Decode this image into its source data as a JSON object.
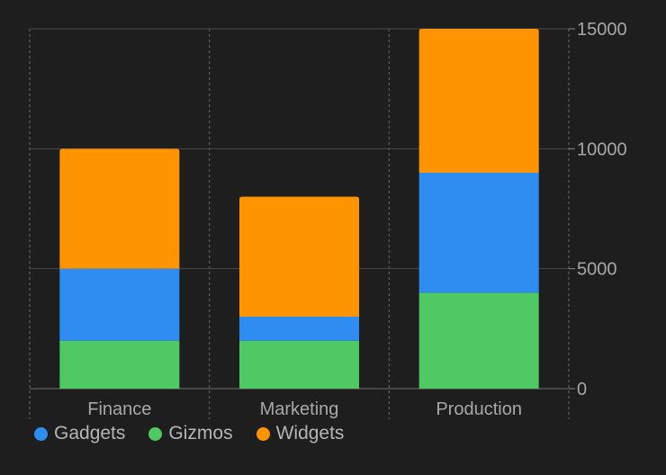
{
  "chart_data": {
    "type": "bar",
    "stacked": true,
    "categories": [
      "Finance",
      "Marketing",
      "Production"
    ],
    "series": [
      {
        "name": "Gizmos",
        "values": [
          2000,
          2000,
          4000
        ],
        "color": "#4ec964"
      },
      {
        "name": "Gadgets",
        "values": [
          3000,
          1000,
          5000
        ],
        "color": "#2f8cf0"
      },
      {
        "name": "Widgets",
        "values": [
          5000,
          5000,
          6000
        ],
        "color": "#fe9500"
      }
    ],
    "ylim": [
      0,
      15000
    ],
    "yticks": [
      "0",
      "5000",
      "10000",
      "15000"
    ],
    "grid": true,
    "y_axis_side": "right",
    "legend_position": "bottom-left",
    "legend": [
      {
        "name": "Gadgets",
        "color": "#2f8cf0"
      },
      {
        "name": "Gizmos",
        "color": "#4ec964"
      },
      {
        "name": "Widgets",
        "color": "#fe9500"
      }
    ],
    "title": "",
    "xlabel": "",
    "ylabel": ""
  }
}
